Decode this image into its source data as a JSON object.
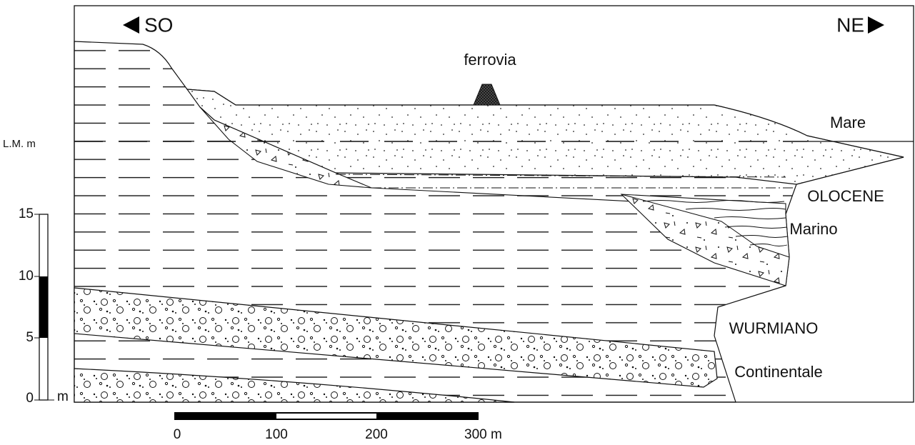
{
  "direction": {
    "left": "SO",
    "right": "NE"
  },
  "labels": {
    "railway": "ferrovia",
    "sea": "Mare",
    "sea_level": "L.M. m",
    "holocene": "OLOCENE",
    "marine": "Marino",
    "wurm": "WURMIANO",
    "continental": "Continentale"
  },
  "vertical_scale": {
    "ticks": [
      "15",
      "10",
      "5",
      "0"
    ],
    "unit": "m"
  },
  "horizontal_scale": {
    "ticks": [
      "0",
      "100",
      "200",
      "300 m"
    ]
  }
}
